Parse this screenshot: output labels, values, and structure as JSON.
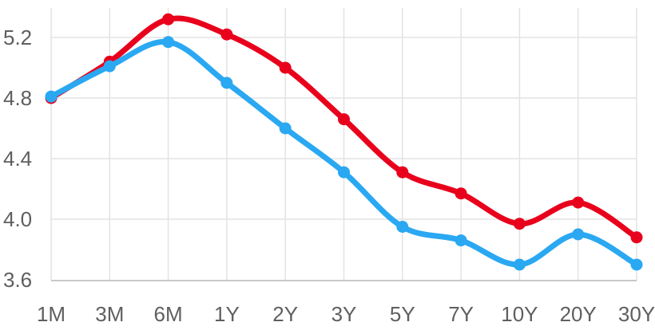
{
  "chart_data": {
    "type": "line",
    "categories": [
      "1M",
      "3M",
      "6M",
      "1Y",
      "2Y",
      "3Y",
      "5Y",
      "7Y",
      "10Y",
      "20Y",
      "30Y"
    ],
    "y_ticks": [
      "3.6",
      "4.0",
      "4.4",
      "4.8",
      "5.2"
    ],
    "ylim": [
      3.55,
      5.35
    ],
    "grid": true,
    "series": [
      {
        "color": "#e8001c",
        "values": [
          4.8,
          5.04,
          5.32,
          5.22,
          5.0,
          4.66,
          4.31,
          4.17,
          3.97,
          4.11,
          3.88
        ]
      },
      {
        "color": "#2aa8f2",
        "values": [
          4.81,
          5.01,
          5.17,
          4.9,
          4.6,
          4.31,
          3.95,
          3.86,
          3.7,
          3.9,
          3.7
        ]
      }
    ]
  }
}
